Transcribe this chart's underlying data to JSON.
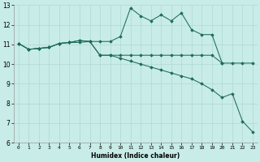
{
  "xlabel": "Humidex (Indice chaleur)",
  "background_color": "#c8ece8",
  "grid_color": "#b0d8d4",
  "line_color": "#1e6b5e",
  "xlim": [
    -0.5,
    23.5
  ],
  "ylim": [
    6,
    13
  ],
  "xticks": [
    0,
    1,
    2,
    3,
    4,
    5,
    6,
    7,
    8,
    9,
    10,
    11,
    12,
    13,
    14,
    15,
    16,
    17,
    18,
    19,
    20,
    21,
    22,
    23
  ],
  "yticks": [
    6,
    7,
    8,
    9,
    10,
    11,
    12,
    13
  ],
  "lines": [
    {
      "x": [
        0,
        1,
        2,
        3,
        4,
        5,
        6,
        7,
        8,
        9,
        10,
        11,
        12,
        13,
        14,
        15,
        16,
        17,
        18,
        19,
        20
      ],
      "y": [
        11.05,
        10.75,
        10.8,
        10.85,
        11.05,
        11.1,
        11.1,
        11.15,
        11.15,
        11.15,
        11.4,
        12.85,
        12.45,
        12.2,
        12.5,
        12.2,
        12.6,
        11.75,
        11.5,
        11.5,
        10.05
      ]
    },
    {
      "x": [
        0,
        1,
        2,
        3,
        4,
        5,
        6,
        7,
        8,
        9,
        10,
        11,
        12,
        13,
        14,
        15,
        16,
        17,
        18,
        19,
        20,
        21,
        22,
        23
      ],
      "y": [
        11.05,
        10.75,
        10.8,
        10.85,
        11.05,
        11.1,
        11.2,
        11.15,
        10.45,
        10.45,
        10.45,
        10.45,
        10.45,
        10.45,
        10.45,
        10.45,
        10.45,
        10.45,
        10.45,
        10.45,
        10.05,
        10.05,
        10.05,
        10.05
      ]
    },
    {
      "x": [
        0,
        1,
        2,
        3,
        4,
        5,
        6,
        7,
        8,
        9,
        10,
        11,
        12,
        13,
        14,
        15,
        16,
        17,
        18,
        19,
        20,
        21,
        22,
        23
      ],
      "y": [
        11.05,
        10.75,
        10.8,
        10.85,
        11.05,
        11.1,
        11.2,
        11.15,
        10.45,
        10.45,
        10.3,
        10.15,
        10.0,
        9.85,
        9.7,
        9.55,
        9.4,
        9.25,
        9.0,
        8.7,
        8.3,
        8.5,
        7.1,
        6.55
      ]
    }
  ]
}
